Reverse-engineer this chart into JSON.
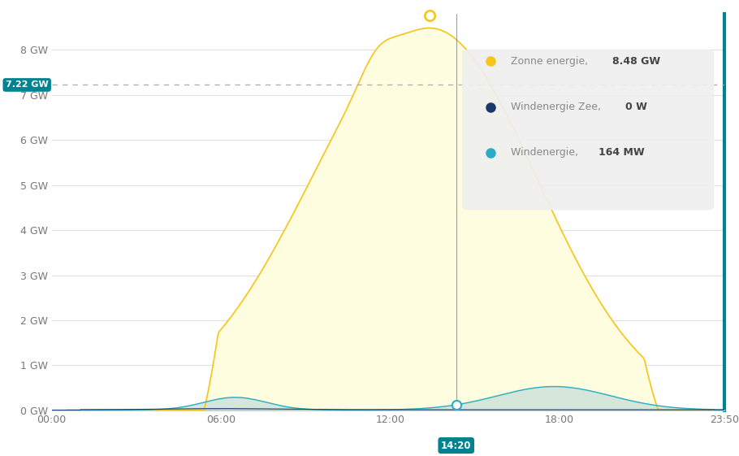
{
  "background_color": "#ffffff",
  "plot_bg_color": "#ffffff",
  "y_max": 8.8,
  "y_ticks": [
    0,
    1,
    2,
    3,
    4,
    5,
    6,
    7,
    8
  ],
  "y_tick_labels": [
    "0 GW",
    "1 GW",
    "2 GW",
    "3 GW",
    "4 GW",
    "5 GW",
    "6 GW",
    "7 GW",
    "8 GW"
  ],
  "x_tick_vals": [
    0,
    6,
    12,
    18,
    23.833
  ],
  "x_tick_labels": [
    "00:00",
    "06:00",
    "12:00",
    "18:00",
    "23:50"
  ],
  "hline_value": 7.22,
  "hline_label": "7.22 GW",
  "cursor_hour": 14.333,
  "cursor_label": "14:20",
  "sun_x_hour": 13.4,
  "legend_entries": [
    {
      "label": "Zonne energie, ",
      "bold": "8.48 GW",
      "color": "#f5c518",
      "dot_fill": "#f5c518"
    },
    {
      "label": "Windenergie Zee, ",
      "bold": "0 W",
      "color": "#1a3a6b",
      "dot_fill": "#1a3a6b"
    },
    {
      "label": "Windenergie, ",
      "bold": "164 MW",
      "color": "#29adc4",
      "dot_fill": "#29adc4"
    }
  ],
  "solar_fill": "#fffde0",
  "solar_line": "#f5c518",
  "wind_land_fill": "#c8dfd8",
  "wind_land_line": "#29adc4",
  "wind_sea_fill": "#b8d0c8",
  "wind_sea_line": "#1a3a6b",
  "teal_color": "#00838f",
  "grid_color": "#e0e0e0",
  "hline_color": "#aaaaaa"
}
